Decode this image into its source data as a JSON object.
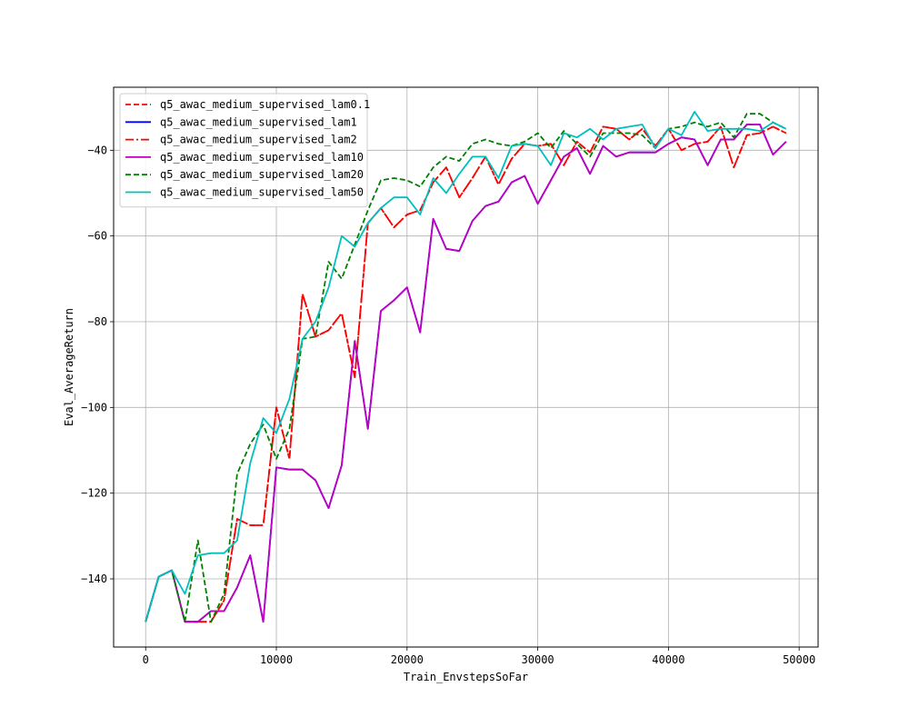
{
  "chart_data": {
    "type": "line",
    "title": "",
    "xlabel": "Train_EnvstepsSoFar",
    "ylabel": "Eval_AverageReturn",
    "xlim": [
      -2450,
      51450
    ],
    "ylim": [
      -155.9,
      -25.3
    ],
    "xticks": [
      0,
      10000,
      20000,
      30000,
      40000,
      50000
    ],
    "xtick_labels": [
      "0",
      "10000",
      "20000",
      "30000",
      "40000",
      "50000"
    ],
    "yticks": [
      -140,
      -120,
      -100,
      -80,
      -60,
      -40
    ],
    "ytick_labels": [
      "−140",
      "−120",
      "−100",
      "−80",
      "−60",
      "−40"
    ],
    "grid": true,
    "legend_position": "upper-left",
    "x": [
      0,
      1000,
      2000,
      3000,
      4000,
      5000,
      6000,
      7000,
      8000,
      9000,
      10000,
      11000,
      12000,
      13000,
      14000,
      15000,
      16000,
      17000,
      18000,
      19000,
      20000,
      21000,
      22000,
      23000,
      24000,
      25000,
      26000,
      27000,
      28000,
      29000,
      30000,
      31000,
      32000,
      33000,
      34000,
      35000,
      36000,
      37000,
      38000,
      39000,
      40000,
      41000,
      42000,
      43000,
      44000,
      45000,
      46000,
      47000,
      48000,
      49000
    ],
    "series": [
      {
        "name": "q5_awac_medium_supervised_lam0.1",
        "color": "#ff0000",
        "dash": "dashed",
        "values": [
          -150,
          -139.5,
          -138,
          -150,
          -150,
          -150,
          -145,
          -126,
          -127.5,
          -127.5,
          -100,
          -112,
          -73.5,
          -83.5,
          -82,
          -78,
          -93,
          -57,
          -53.5,
          -58,
          -55,
          -54,
          -47.5,
          -44,
          -51,
          -46.5,
          -41.5,
          -48,
          -42,
          -38.5,
          -39,
          -38.5,
          -43.5,
          -38,
          -40.5,
          -34.5,
          -35,
          -37.5,
          -35,
          -39,
          -35,
          -40,
          -38.5,
          -38,
          -34.5,
          -44,
          -36.5,
          -36,
          -34.5,
          -36
        ]
      },
      {
        "name": "q5_awac_medium_supervised_lam1",
        "color": "#0000ff",
        "dash": "solid",
        "values": [
          -150,
          -139.5,
          -138,
          -150,
          -150,
          -147.5,
          -147.5,
          -142,
          -134.5,
          -150,
          -114,
          -114.5,
          -114.5,
          -117,
          -123.5,
          -113.5,
          -84.5,
          -105,
          -77.5,
          -75,
          -72,
          -82.5,
          -56,
          -63,
          -63.5,
          -56.5,
          -53,
          -52,
          -47.5,
          -46,
          -52.5,
          -47,
          -41.5,
          -39.5,
          -45.5,
          -39,
          -41.5,
          -40.5,
          -40.5,
          -40.5,
          -38.5,
          -37,
          -37.5,
          -43.5,
          -37.5,
          -37.5,
          -34,
          -34,
          -41,
          -38
        ]
      },
      {
        "name": "q5_awac_medium_supervised_lam2",
        "color": "#ff0000",
        "dash": "dashdot",
        "values": [
          -150,
          -139.5,
          -138,
          -150,
          -150,
          -150,
          -145,
          -126,
          -127.5,
          -127.5,
          -100,
          -112,
          -73.5,
          -83.5,
          -82,
          -78,
          -93,
          -57,
          -53.5,
          -58,
          -55,
          -54,
          -47.5,
          -44,
          -51,
          -46.5,
          -41.5,
          -48,
          -42,
          -38.5,
          -39,
          -38.5,
          -43.5,
          -38,
          -40.5,
          -34.5,
          -35,
          -37.5,
          -35,
          -39,
          -35,
          -40,
          -38.5,
          -38,
          -34.5,
          -44,
          -36.5,
          -36,
          -34.5,
          -36
        ]
      },
      {
        "name": "q5_awac_medium_supervised_lam10",
        "color": "#bf00bf",
        "dash": "solid",
        "values": [
          -150,
          -139.5,
          -138,
          -150,
          -150,
          -147.5,
          -147.5,
          -142,
          -134.5,
          -150,
          -114,
          -114.5,
          -114.5,
          -117,
          -123.5,
          -113.5,
          -84.5,
          -105,
          -77.5,
          -75,
          -72,
          -82.5,
          -56,
          -63,
          -63.5,
          -56.5,
          -53,
          -52,
          -47.5,
          -46,
          -52.5,
          -47,
          -41.5,
          -39.5,
          -45.5,
          -39,
          -41.5,
          -40.5,
          -40.5,
          -40.5,
          -38.5,
          -37,
          -37.5,
          -43.5,
          -37.5,
          -37.5,
          -34,
          -34,
          -41,
          -38
        ]
      },
      {
        "name": "q5_awac_medium_supervised_lam20",
        "color": "#008000",
        "dash": "dashed",
        "values": [
          -150,
          -139.5,
          -138,
          -150,
          -131,
          -150,
          -143.5,
          -115.5,
          -108.5,
          -104,
          -112,
          -105,
          -84,
          -83.5,
          -66,
          -70,
          -62,
          -54,
          -47,
          -46.5,
          -47,
          -48.5,
          -44,
          -41.5,
          -42.5,
          -38.5,
          -37.5,
          -38.5,
          -39,
          -38,
          -36,
          -39.5,
          -35.5,
          -38.5,
          -41.5,
          -36,
          -36,
          -36,
          -36.5,
          -39.5,
          -35,
          -34.5,
          -33.5,
          -34.5,
          -33.5,
          -37,
          -31.5,
          -31.5,
          -33.5,
          -35
        ]
      },
      {
        "name": "q5_awac_medium_supervised_lam50",
        "color": "#00bfbf",
        "dash": "solid",
        "values": [
          -150,
          -139.5,
          -138,
          -143.5,
          -134.5,
          -134,
          -134,
          -131,
          -113,
          -102.5,
          -106,
          -98,
          -84,
          -80,
          -72,
          -60,
          -62.5,
          -57,
          -53.5,
          -51,
          -51,
          -55,
          -46.5,
          -50,
          -45.5,
          -41.5,
          -41.5,
          -46.5,
          -39,
          -38.5,
          -39,
          -43.5,
          -36,
          -37,
          -35,
          -37.5,
          -35,
          -34.5,
          -34,
          -39.5,
          -35,
          -36.5,
          -31,
          -35.5,
          -35,
          -35,
          -35,
          -35.5,
          -33.5,
          -35
        ]
      }
    ]
  }
}
